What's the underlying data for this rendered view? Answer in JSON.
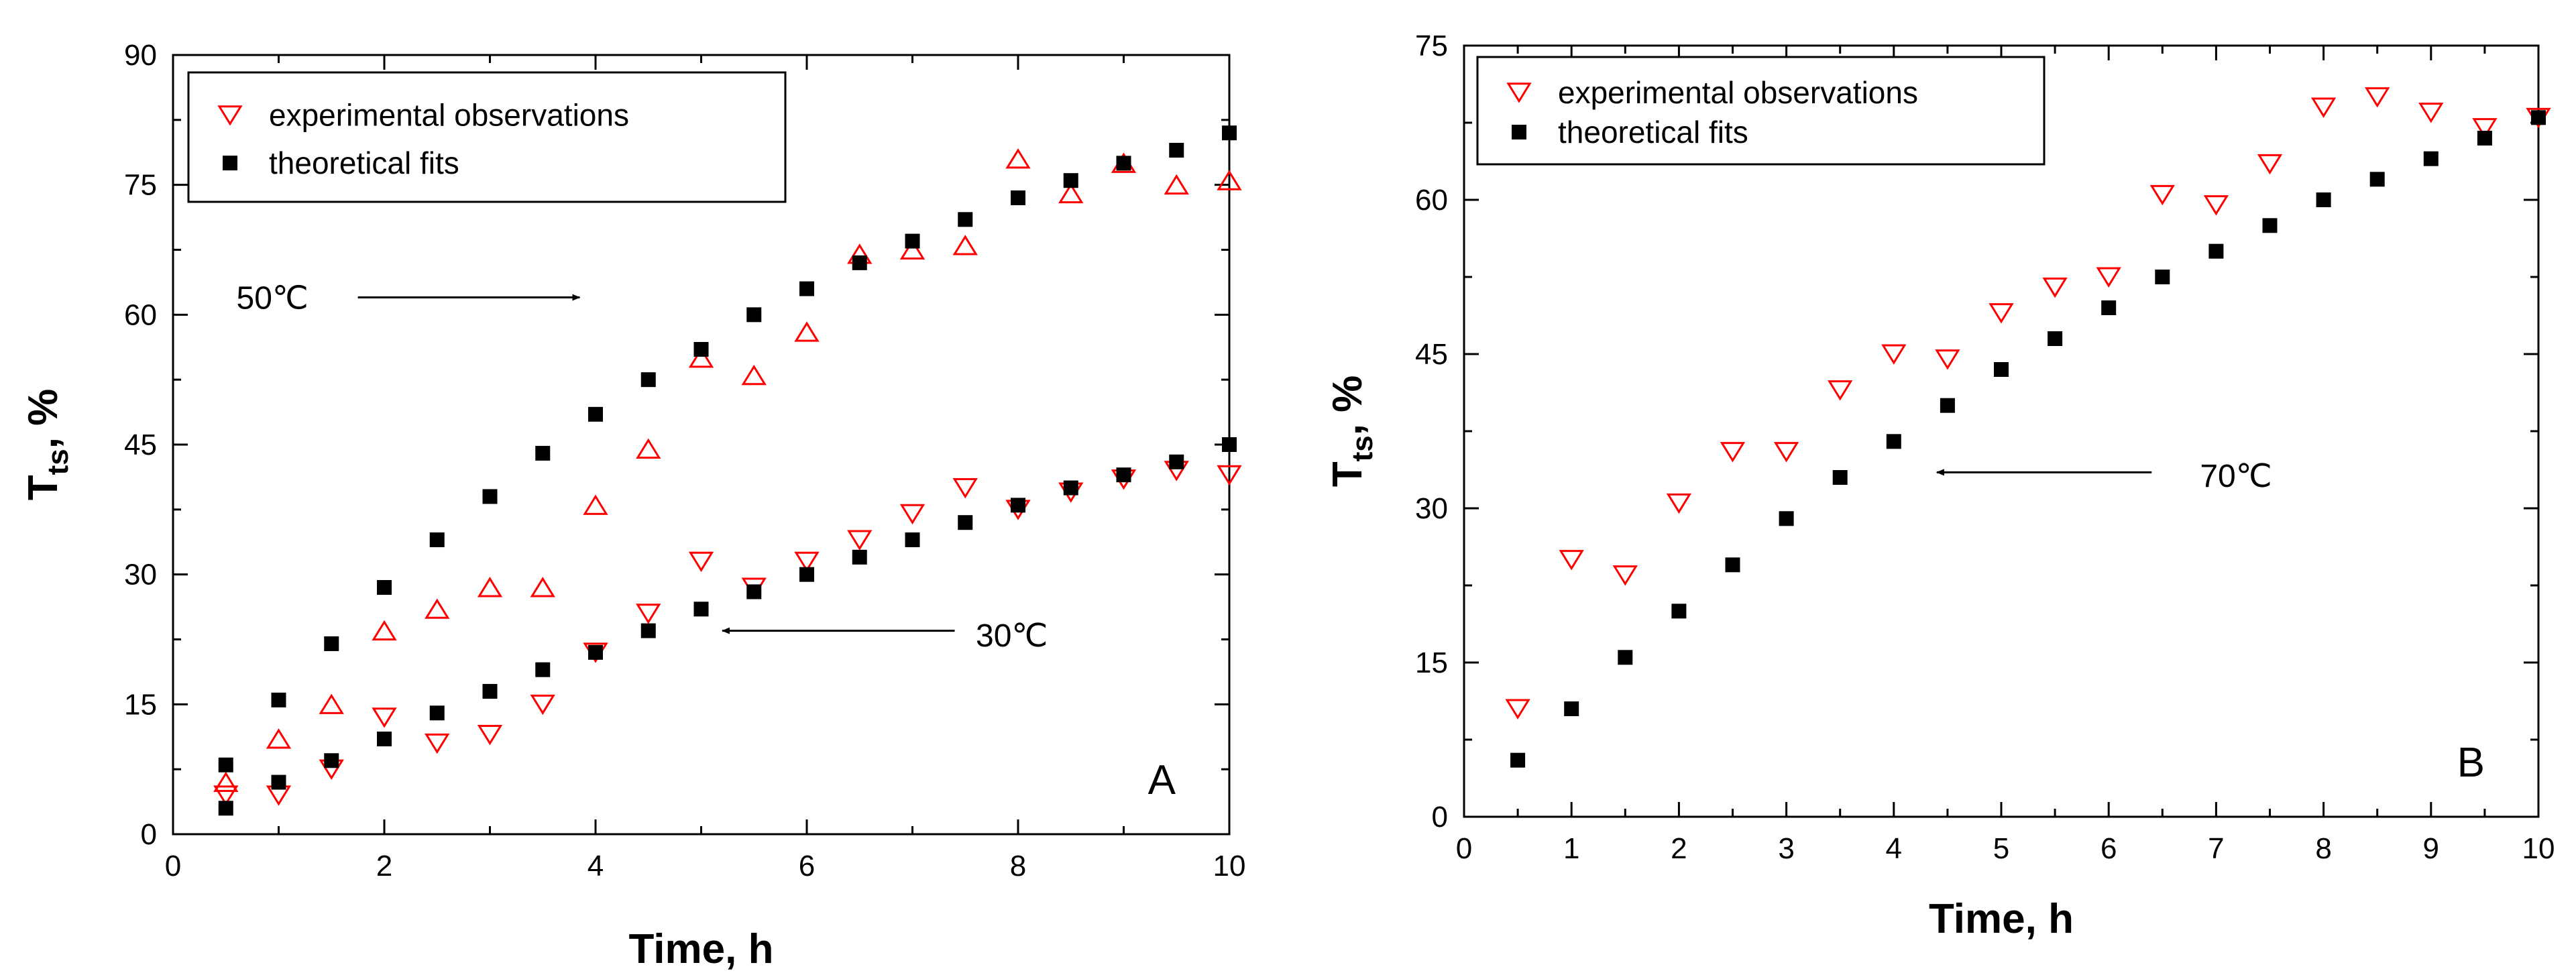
{
  "chart_data": [
    {
      "type": "scatter",
      "panel_label": "A",
      "xlabel": "Time, h",
      "ylabel_main": "T",
      "ylabel_sub": "ts",
      "ylabel_suffix": ", %",
      "xlim": [
        0,
        10
      ],
      "ylim": [
        0,
        90
      ],
      "xticks": [
        0,
        2,
        4,
        6,
        8,
        10
      ],
      "yticks": [
        0,
        15,
        30,
        45,
        60,
        75,
        90
      ],
      "legend": {
        "position": "top-left",
        "entries": [
          {
            "name": "experimental observations",
            "marker": "open-triangle-down",
            "color": "#ff0000"
          },
          {
            "name": "theoretical fits",
            "marker": "filled-square",
            "color": "#000000"
          }
        ]
      },
      "annotations": [
        {
          "text": "50℃",
          "x": 0.6,
          "y": 62,
          "arrow_from": [
            1.75,
            62
          ],
          "arrow_to": [
            3.85,
            62
          ]
        },
        {
          "text": "30℃",
          "x": 7.6,
          "y": 23,
          "arrow_from": [
            7.4,
            23.5
          ],
          "arrow_to": [
            5.2,
            23.5
          ]
        }
      ],
      "series": [
        {
          "name": "experimental 50℃",
          "marker": "open-triangle-up",
          "color": "#ff0000",
          "x": [
            0.5,
            1,
            1.5,
            2,
            2.5,
            3,
            3.5,
            4,
            4.5,
            5,
            5.5,
            6,
            6.5,
            7,
            7.5,
            8,
            8.5,
            9,
            9.5,
            10
          ],
          "y": [
            6,
            11,
            15,
            23.5,
            26,
            28.5,
            28.5,
            38,
            44.5,
            55,
            53,
            58,
            67,
            67.5,
            68,
            78,
            74,
            77.5,
            75,
            75.5
          ]
        },
        {
          "name": "theoretical 50℃",
          "marker": "filled-square",
          "color": "#000000",
          "x": [
            0.5,
            1,
            1.5,
            2,
            2.5,
            3,
            3.5,
            4,
            4.5,
            5,
            5.5,
            6,
            6.5,
            7,
            7.5,
            8,
            8.5,
            9,
            9.5,
            10
          ],
          "y": [
            8,
            15.5,
            22,
            28.5,
            34,
            39,
            44,
            48.5,
            52.5,
            56,
            60,
            63,
            66,
            68.5,
            71,
            73.5,
            75.5,
            77.5,
            79,
            81
          ]
        },
        {
          "name": "experimental 30℃",
          "marker": "open-triangle-down",
          "color": "#ff0000",
          "x": [
            0.5,
            1,
            1.5,
            2,
            2.5,
            3,
            3.5,
            4,
            4.5,
            5,
            5.5,
            6,
            6.5,
            7,
            7.5,
            8,
            8.5,
            9,
            9.5,
            10
          ],
          "y": [
            4.5,
            4.5,
            7.5,
            13.5,
            10.5,
            11.5,
            15,
            21,
            25.5,
            31.5,
            28.5,
            31.5,
            34,
            37,
            40,
            37.5,
            39.5,
            41,
            42,
            41.5
          ]
        },
        {
          "name": "theoretical 30℃",
          "marker": "filled-square",
          "color": "#000000",
          "x": [
            0.5,
            1,
            1.5,
            2,
            2.5,
            3,
            3.5,
            4,
            4.5,
            5,
            5.5,
            6,
            6.5,
            7,
            7.5,
            8,
            8.5,
            9,
            9.5,
            10
          ],
          "y": [
            3,
            6,
            8.5,
            11,
            14,
            16.5,
            19,
            21,
            23.5,
            26,
            28,
            30,
            32,
            34,
            36,
            38,
            40,
            41.5,
            43,
            45
          ]
        }
      ]
    },
    {
      "type": "scatter",
      "panel_label": "B",
      "xlabel": "Time, h",
      "ylabel_main": "T",
      "ylabel_sub": "ts",
      "ylabel_suffix": ", %",
      "xlim": [
        0,
        10
      ],
      "ylim": [
        0,
        75
      ],
      "xticks": [
        0,
        1,
        2,
        3,
        4,
        5,
        6,
        7,
        8,
        9,
        10
      ],
      "yticks": [
        0,
        15,
        30,
        45,
        60,
        75
      ],
      "legend": {
        "position": "top-left",
        "entries": [
          {
            "name": "experimental observations",
            "marker": "open-triangle-down",
            "color": "#ff0000"
          },
          {
            "name": "theoretical fits",
            "marker": "filled-square",
            "color": "#000000"
          }
        ]
      },
      "annotations": [
        {
          "text": "70℃",
          "x": 6.85,
          "y": 33.2,
          "arrow_from": [
            6.4,
            33.5
          ],
          "arrow_to": [
            4.4,
            33.5
          ]
        }
      ],
      "series": [
        {
          "name": "experimental 70℃",
          "marker": "open-triangle-down",
          "color": "#ff0000",
          "x": [
            0.5,
            1,
            1.5,
            2,
            2.5,
            3,
            3.5,
            4,
            4.5,
            5,
            5.5,
            6,
            6.5,
            7,
            7.5,
            8,
            8.5,
            9,
            9.5,
            10
          ],
          "y": [
            10.5,
            25,
            23.5,
            30.5,
            35.5,
            35.5,
            41.5,
            45,
            44.5,
            49,
            51.5,
            52.5,
            60.5,
            59.5,
            63.5,
            69,
            70,
            68.5,
            67,
            68
          ]
        },
        {
          "name": "theoretical 70℃",
          "marker": "filled-square",
          "color": "#000000",
          "x": [
            0.5,
            1,
            1.5,
            2,
            2.5,
            3,
            3.5,
            4,
            4.5,
            5,
            5.5,
            6,
            6.5,
            7,
            7.5,
            8,
            8.5,
            9,
            9.5,
            10
          ],
          "y": [
            5.5,
            10.5,
            15.5,
            20,
            24.5,
            29,
            33,
            36.5,
            40,
            43.5,
            46.5,
            49.5,
            52.5,
            55,
            57.5,
            60,
            62,
            64,
            66,
            68
          ]
        }
      ]
    }
  ]
}
